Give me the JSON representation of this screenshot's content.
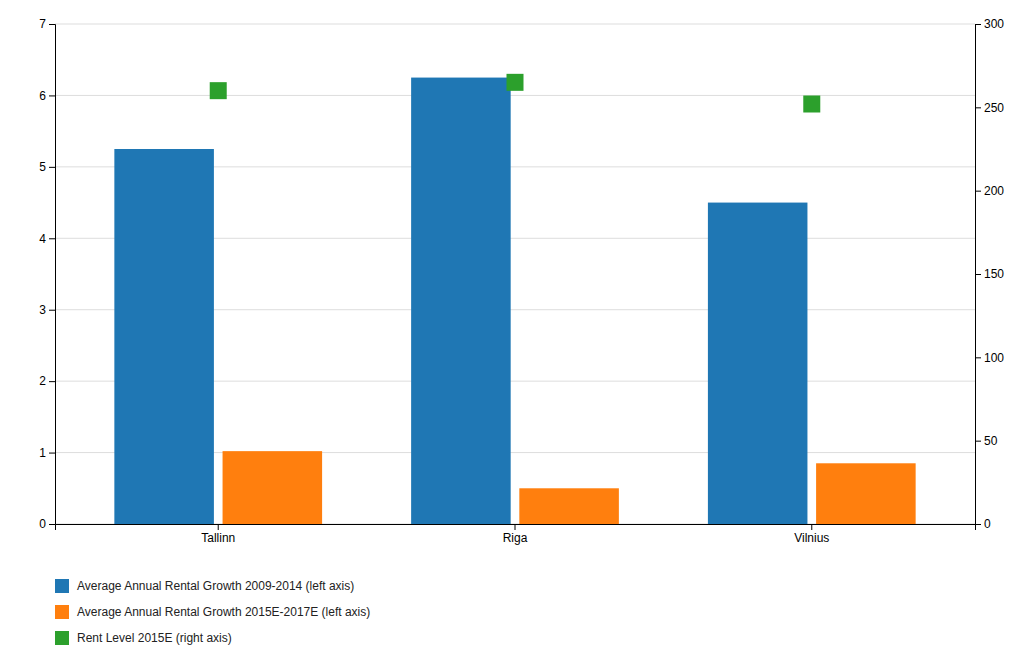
{
  "chart_data": {
    "type": "bar",
    "categories": [
      "Tallinn",
      "Riga",
      "Vilnius"
    ],
    "series": [
      {
        "name": "Average Annual Rental Growth 2009-2014 (left axis)",
        "type": "bar",
        "values": [
          5.25,
          6.25,
          4.5
        ]
      },
      {
        "name": "Average Annual Rental Growth 2015E-2017E (left axis)",
        "type": "bar",
        "values": [
          1.02,
          0.5,
          0.85
        ]
      },
      {
        "name": "Rent Level 2015E (right axis)",
        "type": "scatter",
        "axis": "y2",
        "marker": "square",
        "values": [
          260,
          265,
          252
        ]
      }
    ],
    "ylim": [
      0,
      7
    ],
    "yticks": [
      0,
      1,
      2,
      3,
      4,
      5,
      6,
      7
    ],
    "y2lim": [
      0,
      300
    ],
    "y2ticks": [
      0,
      50,
      100,
      150,
      200,
      250,
      300
    ],
    "grid": true,
    "legend": "lower left"
  }
}
